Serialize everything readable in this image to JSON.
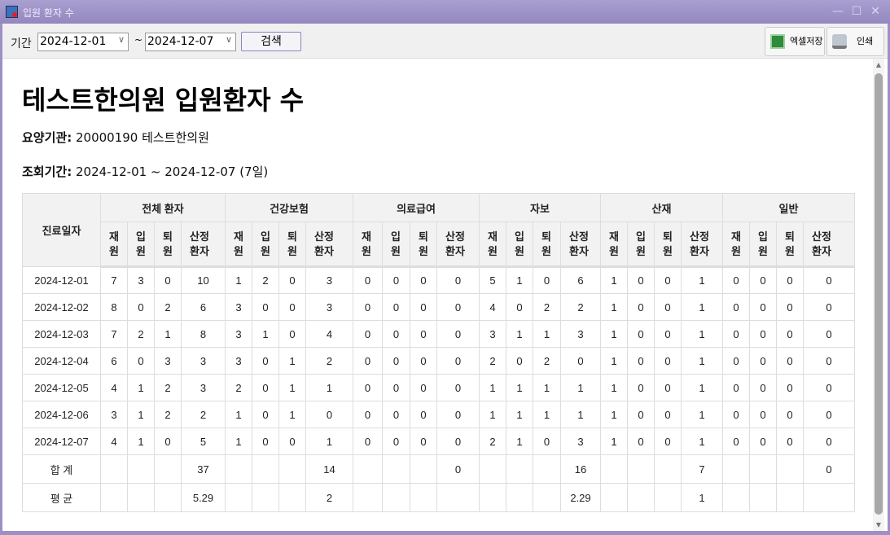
{
  "window": {
    "title": "입원 환자 수",
    "minimize": "—",
    "maximize": "☐",
    "close": "✕"
  },
  "toolbar": {
    "period_label": "기간",
    "start_date": "2024-12-01",
    "end_date": "2024-12-07",
    "tilde": "~",
    "search_label": "검색",
    "excel_label": "엑셀저장",
    "print_label": "인쇄"
  },
  "report": {
    "title": "테스트한의원 입원환자 수",
    "institution_label": "요양기관:",
    "institution_value": "20000190 테스트한의원",
    "period_label": "조회기간:",
    "period_value": "2024-12-01 ~ 2024-12-07 (7일)"
  },
  "table": {
    "date_header": "진료일자",
    "groups": [
      "전체 환자",
      "건강보험",
      "의료급여",
      "자보",
      "산재",
      "일반"
    ],
    "subheaders": [
      [
        "재",
        "원"
      ],
      [
        "입",
        "원"
      ],
      [
        "퇴",
        "원"
      ],
      [
        "산정",
        "환자"
      ]
    ],
    "rows": [
      {
        "date": "2024-12-01",
        "values": [
          "7",
          "3",
          "0",
          "10",
          "1",
          "2",
          "0",
          "3",
          "0",
          "0",
          "0",
          "0",
          "5",
          "1",
          "0",
          "6",
          "1",
          "0",
          "0",
          "1",
          "0",
          "0",
          "0",
          "0"
        ]
      },
      {
        "date": "2024-12-02",
        "values": [
          "8",
          "0",
          "2",
          "6",
          "3",
          "0",
          "0",
          "3",
          "0",
          "0",
          "0",
          "0",
          "4",
          "0",
          "2",
          "2",
          "1",
          "0",
          "0",
          "1",
          "0",
          "0",
          "0",
          "0"
        ]
      },
      {
        "date": "2024-12-03",
        "values": [
          "7",
          "2",
          "1",
          "8",
          "3",
          "1",
          "0",
          "4",
          "0",
          "0",
          "0",
          "0",
          "3",
          "1",
          "1",
          "3",
          "1",
          "0",
          "0",
          "1",
          "0",
          "0",
          "0",
          "0"
        ]
      },
      {
        "date": "2024-12-04",
        "values": [
          "6",
          "0",
          "3",
          "3",
          "3",
          "0",
          "1",
          "2",
          "0",
          "0",
          "0",
          "0",
          "2",
          "0",
          "2",
          "0",
          "1",
          "0",
          "0",
          "1",
          "0",
          "0",
          "0",
          "0"
        ]
      },
      {
        "date": "2024-12-05",
        "values": [
          "4",
          "1",
          "2",
          "3",
          "2",
          "0",
          "1",
          "1",
          "0",
          "0",
          "0",
          "0",
          "1",
          "1",
          "1",
          "1",
          "1",
          "0",
          "0",
          "1",
          "0",
          "0",
          "0",
          "0"
        ]
      },
      {
        "date": "2024-12-06",
        "values": [
          "3",
          "1",
          "2",
          "2",
          "1",
          "0",
          "1",
          "0",
          "0",
          "0",
          "0",
          "0",
          "1",
          "1",
          "1",
          "1",
          "1",
          "0",
          "0",
          "1",
          "0",
          "0",
          "0",
          "0"
        ]
      },
      {
        "date": "2024-12-07",
        "values": [
          "4",
          "1",
          "0",
          "5",
          "1",
          "0",
          "0",
          "1",
          "0",
          "0",
          "0",
          "0",
          "2",
          "1",
          "0",
          "3",
          "1",
          "0",
          "0",
          "1",
          "0",
          "0",
          "0",
          "0"
        ]
      }
    ],
    "total": {
      "label": "합 계",
      "values": [
        "",
        "",
        "",
        "37",
        "",
        "",
        "",
        "14",
        "",
        "",
        "",
        "0",
        "",
        "",
        "",
        "16",
        "",
        "",
        "",
        "7",
        "",
        "",
        "",
        "0"
      ]
    },
    "average": {
      "label": "평 균",
      "values": [
        "",
        "",
        "",
        "5.29",
        "",
        "",
        "",
        "2",
        "",
        "",
        "",
        "",
        "",
        "",
        "",
        "2.29",
        "",
        "",
        "",
        "1",
        "",
        "",
        "",
        ""
      ]
    }
  }
}
